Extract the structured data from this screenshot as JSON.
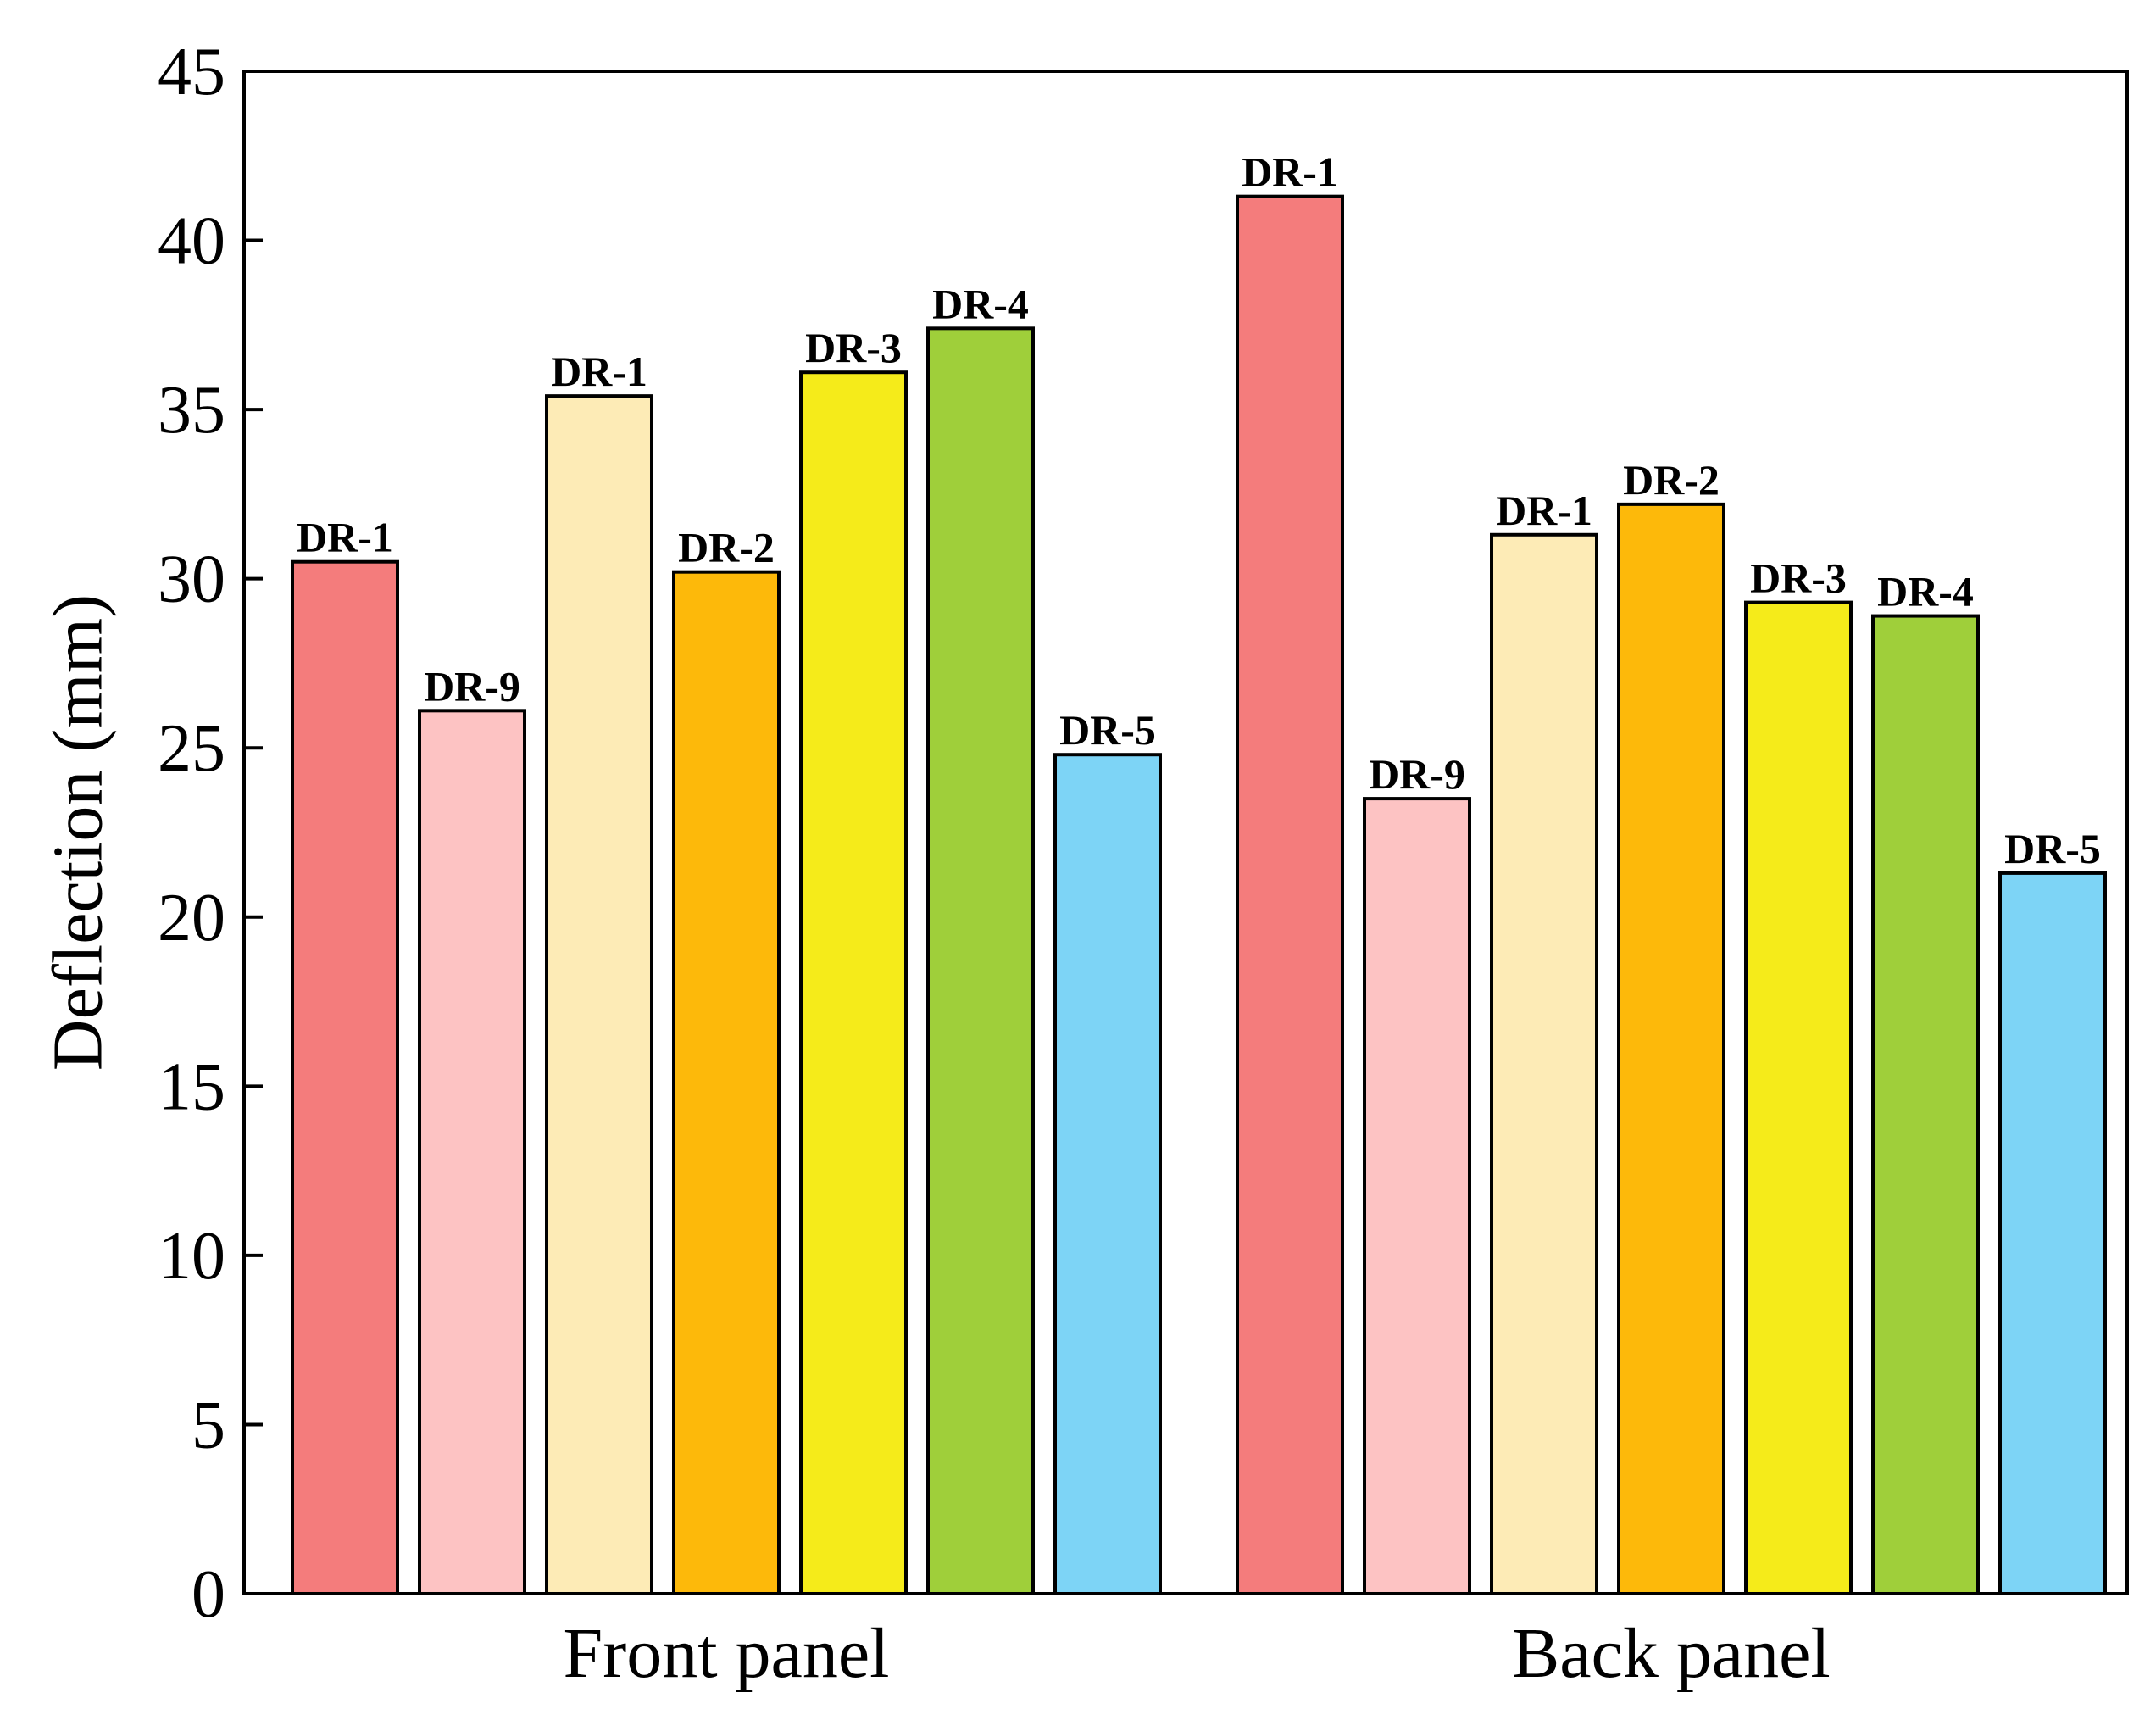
{
  "chart_data": {
    "type": "bar",
    "title": "",
    "xlabel": "",
    "ylabel": "Deflection (mm)",
    "ylim": [
      0,
      45
    ],
    "yticks": [
      0,
      5,
      10,
      15,
      20,
      25,
      30,
      35,
      40,
      45
    ],
    "grid": false,
    "legend": "none",
    "groups": [
      {
        "name": "Front panel",
        "bars": [
          {
            "label": "DR-1",
            "value": 30.5,
            "color": "#F47C7C"
          },
          {
            "label": "DR-9",
            "value": 26.1,
            "color": "#FDC3C3"
          },
          {
            "label": "DR-1",
            "value": 35.4,
            "color": "#FDEBB6"
          },
          {
            "label": "DR-2",
            "value": 30.2,
            "color": "#FDB90A"
          },
          {
            "label": "DR-3",
            "value": 36.1,
            "color": "#F5EB1A"
          },
          {
            "label": "DR-4",
            "value": 37.4,
            "color": "#9FCF3A"
          },
          {
            "label": "DR-5",
            "value": 24.8,
            "color": "#7DD4F6"
          }
        ]
      },
      {
        "name": "Back panel",
        "bars": [
          {
            "label": "DR-1",
            "value": 41.3,
            "color": "#F47C7C"
          },
          {
            "label": "DR-9",
            "value": 23.5,
            "color": "#FDC3C3"
          },
          {
            "label": "DR-1",
            "value": 31.3,
            "color": "#FDEBB6"
          },
          {
            "label": "DR-2",
            "value": 32.2,
            "color": "#FDB90A"
          },
          {
            "label": "DR-3",
            "value": 29.3,
            "color": "#F5EB1A"
          },
          {
            "label": "DR-4",
            "value": 28.9,
            "color": "#9FCF3A"
          },
          {
            "label": "DR-5",
            "value": 21.3,
            "color": "#7DD4F6"
          }
        ]
      }
    ]
  }
}
